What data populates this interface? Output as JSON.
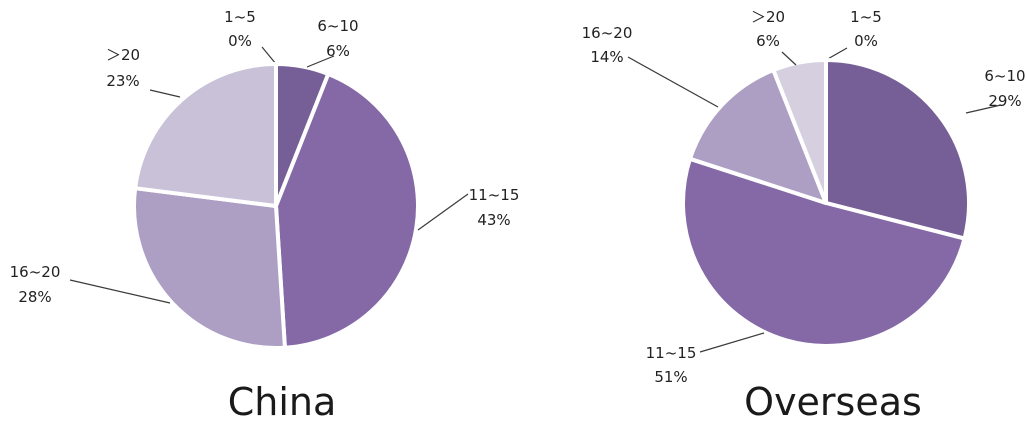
{
  "chart_data": [
    {
      "type": "pie",
      "title": "China",
      "slices": [
        {
          "label": "1~5",
          "percent": "0%",
          "value": 0,
          "color": "#6f5a8f"
        },
        {
          "label": "6~10",
          "percent": "6%",
          "value": 6,
          "color": "#765f96"
        },
        {
          "label": "11~15",
          "percent": "43%",
          "value": 43,
          "color": "#8469a6"
        },
        {
          "label": "16~20",
          "percent": "28%",
          "value": 28,
          "color": "#ad9fc4"
        },
        {
          "label": "＞20",
          "percent": "23%",
          "value": 23,
          "color": "#c9c1d8"
        }
      ]
    },
    {
      "type": "pie",
      "title": "Overseas",
      "slices": [
        {
          "label": "1~5",
          "percent": "0%",
          "value": 0,
          "color": "#6f5a8f"
        },
        {
          "label": "6~10",
          "percent": "29%",
          "value": 29,
          "color": "#765f96"
        },
        {
          "label": "11~15",
          "percent": "51%",
          "value": 51,
          "color": "#8469a6"
        },
        {
          "label": "16~20",
          "percent": "14%",
          "value": 14,
          "color": "#ad9fc4"
        },
        {
          "label": "＞20",
          "percent": "6%",
          "value": 6,
          "color": "#d5cfe0"
        }
      ]
    }
  ]
}
